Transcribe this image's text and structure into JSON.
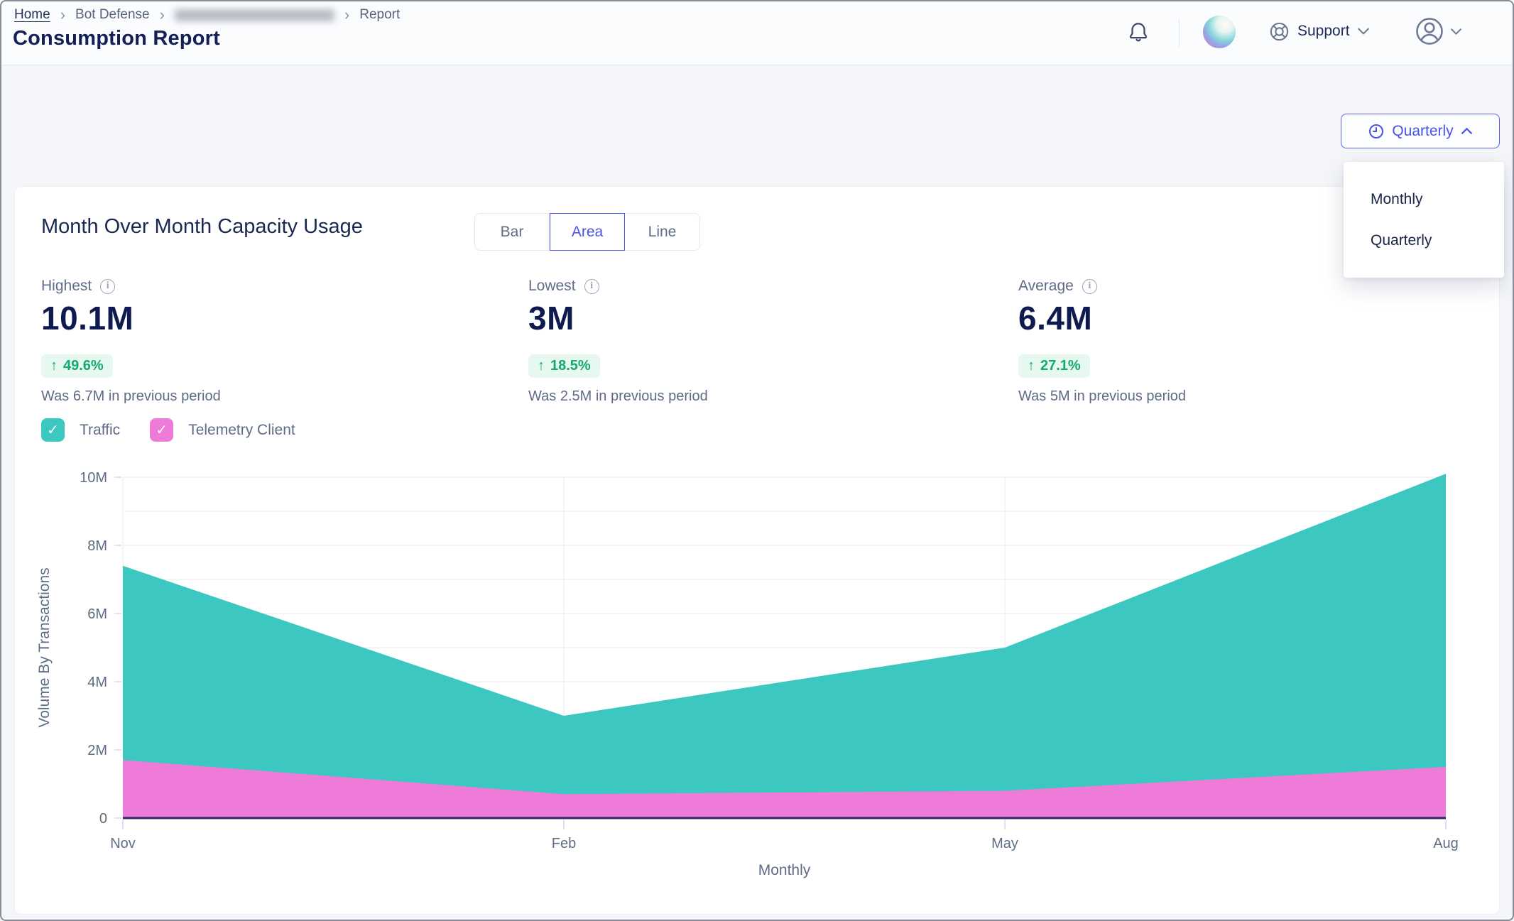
{
  "header": {
    "breadcrumb": {
      "home": "Home",
      "section": "Bot Defense",
      "redacted_segment": true,
      "page": "Report"
    },
    "title": "Consumption Report",
    "support": "Support"
  },
  "period_selector": {
    "value": "Quarterly",
    "menu": [
      "Monthly",
      "Quarterly"
    ]
  },
  "card": {
    "title": "Month Over Month Capacity Usage",
    "view_toggle": {
      "options": [
        "Bar",
        "Area",
        "Line"
      ],
      "selected": "Area"
    },
    "stats": [
      {
        "label": "Highest",
        "value": "10.1M",
        "delta_arrow": "↑",
        "delta": "49.6%",
        "caption": "Was 6.7M in previous period"
      },
      {
        "label": "Lowest",
        "value": "3M",
        "delta_arrow": "↑",
        "delta": "18.5%",
        "caption": "Was 2.5M in previous period"
      },
      {
        "label": "Average",
        "value": "6.4M",
        "delta_arrow": "↑",
        "delta": "27.1%",
        "caption": "Was 5M in previous period"
      }
    ],
    "legend": [
      {
        "label": "Traffic",
        "checked": true,
        "color": "#3cc8c0"
      },
      {
        "label": "Telemetry Client",
        "checked": true,
        "color": "#ef7bd9"
      }
    ]
  },
  "chart_data": {
    "type": "area",
    "overlapping_not_stacked": true,
    "x": [
      "Nov",
      "Feb",
      "May",
      "Aug"
    ],
    "series": [
      {
        "name": "Traffic",
        "color": "#3cc8c0",
        "values_millions": [
          7.4,
          3,
          5,
          10.1
        ]
      },
      {
        "name": "Telemetry Client",
        "color": "#ef7bd9",
        "values_millions": [
          1.7,
          0.7,
          0.8,
          1.5
        ]
      }
    ],
    "xlabel": "Monthly",
    "ylabel": "Volume By Transactions",
    "ylim_millions": [
      0,
      10
    ],
    "ytick_labels": [
      "0",
      "2M",
      "4M",
      "6M",
      "8M",
      "10M"
    ],
    "ytick_values_millions": [
      0,
      2,
      4,
      6,
      8,
      10
    ],
    "minor_grid_step_millions": 1,
    "grid": true,
    "axis_color": "#2b2c6e",
    "grid_color": "#eef0f6",
    "tick_text_color": "#5f6c87"
  },
  "icons": {
    "check": "✓",
    "breadcrumb_separator": "›"
  },
  "colors": {
    "accent_indigo": "#4d55e5",
    "positive_green": "#15a96d",
    "badge_bg": "#e7f8f0",
    "navy_text": "#131f56",
    "muted_text": "#5f6c87",
    "teal_series": "#3cc8c0",
    "pink_series": "#ef7bd9"
  }
}
